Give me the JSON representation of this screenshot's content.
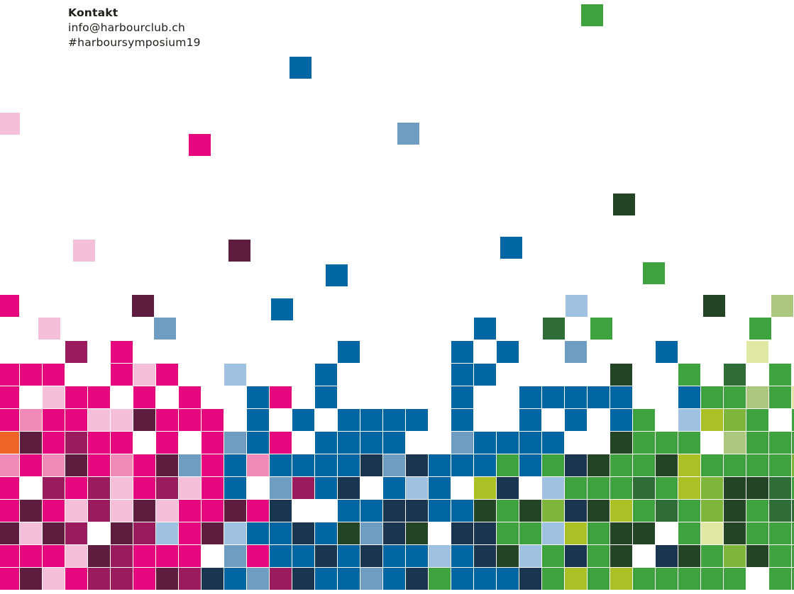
{
  "contact": {
    "label": "Kontakt",
    "email": "info@harbourclub.ch",
    "hashtag": "#harboursymposium19"
  },
  "palette": {
    "P": "#e5087e",
    "L": "#f6bfd9",
    "M": "#f08bb7",
    "R": "#9b1b5f",
    "W": "#5e1d3e",
    "O": "#ec6426",
    "B": "#0066a4",
    "S": "#6f9dc2",
    "C": "#9fc2e1",
    "N": "#1a3550",
    "G": "#3ea33f",
    "D": "#2e6d35",
    "K": "#234425",
    "Y": "#a9c124",
    "T": "#7db63a",
    "E": "#adc77e",
    "F": "#dfe9a4"
  },
  "scattered_tiles": [
    {
      "color": "G"
    },
    {
      "color": "B"
    },
    {
      "color": "L"
    },
    {
      "color": "P"
    },
    {
      "color": "S"
    },
    {
      "color": "K"
    },
    {
      "color": "L"
    },
    {
      "color": "W"
    },
    {
      "color": "B"
    },
    {
      "color": "B"
    },
    {
      "color": "G"
    },
    {
      "color": "P"
    },
    {
      "color": "W"
    },
    {
      "color": "B"
    },
    {
      "color": "C"
    },
    {
      "color": "K"
    },
    {
      "color": "E"
    },
    {
      "color": "L"
    },
    {
      "color": "S"
    },
    {
      "color": "B"
    },
    {
      "color": "D"
    },
    {
      "color": "G"
    },
    {
      "color": "G"
    }
  ],
  "mosaic_rows": [
    "...R.P.........B....B.B..S...B...F..G..F.....",
    "PPP..PLP..C...B.....BB.....K..G.D.G..K..GE...",
    "P.LPP.P.P..BP.B.....B..BBBBB..BGGEGFG..E.DF..",
    "PMPPLLWPPP.B.B.BBBB.B..B.B.BG.CYTG.GYG.GYTG..",
    "OWPRPP.P.PSBP.BBBB..SBBBB..KGGG.EGGGG.GGGG..",
    "MPMWPMPWSPBMBBBBNSNBBBGBGNKGGKYGGGGTGGTG..",
    "P.RPRLPRLPB.SRBN.BCB.YN.CGGGDGYTKKDGGGGGG..",
    "PWPLRLWLPPWPN..BBNNBBKGKTNKYGDGTKGDDGGGGG..",
    "WLWR.WRCPWCBBNBKSNK.NNGGCYGKK.GFKGGGGGGGG..",
    "PPPLWRPPP.SPBBNBNBBCBNKCGNGK.NKGTKGGGGGG..",
    "PWLPRRPWRNBSRNBBSBNGBBBNGYGYGGGGG.GGGGGG.."
  ]
}
